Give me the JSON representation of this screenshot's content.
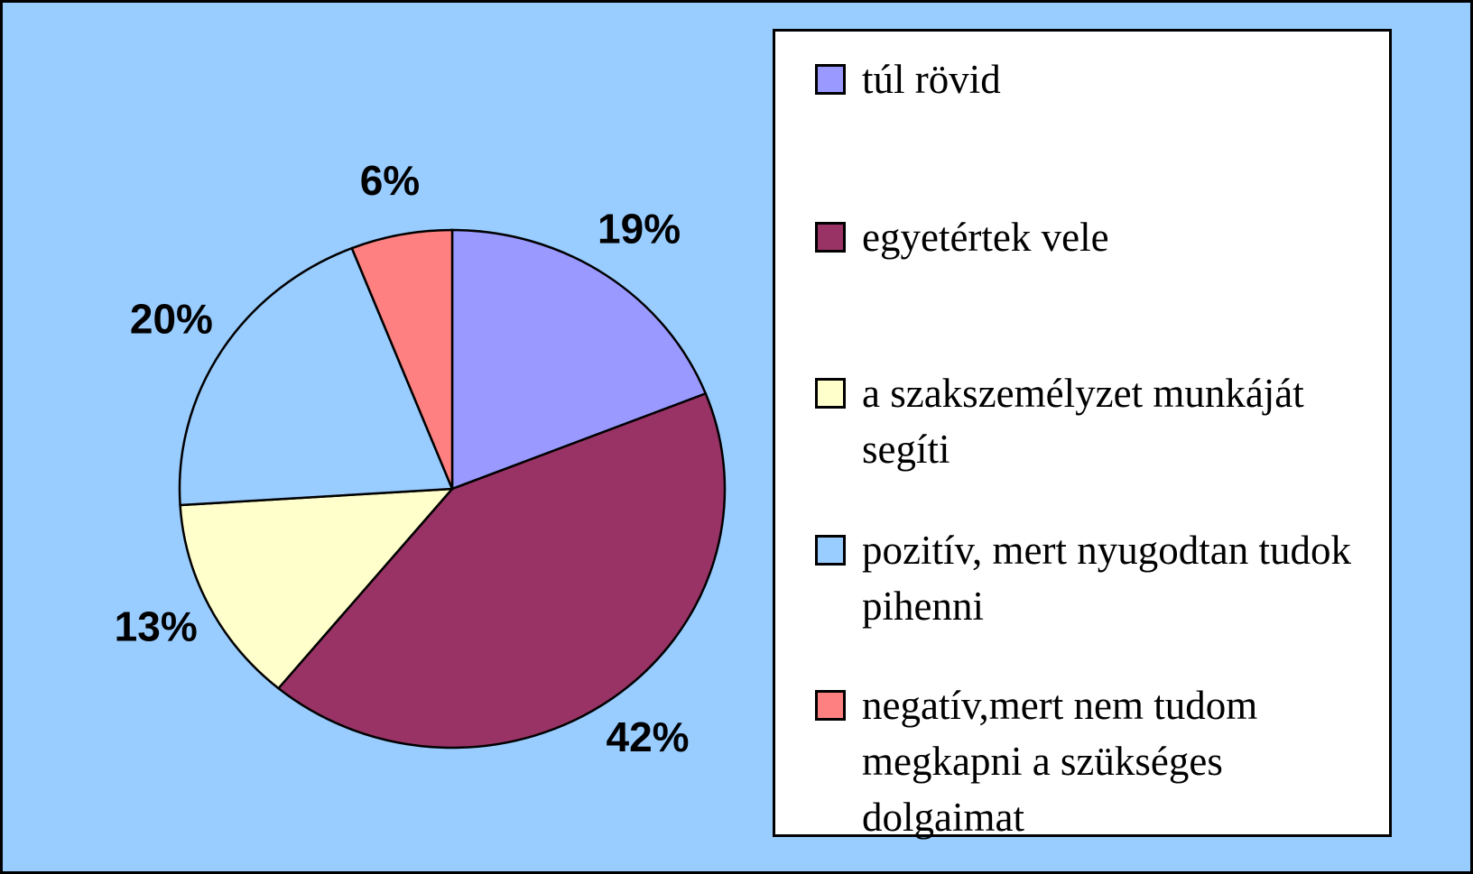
{
  "chart_data": {
    "type": "pie",
    "categories": [
      "túl rövid",
      "egyetértek vele",
      "a szakszemélyzet munkáját segíti",
      "pozitív, mert nyugodtan tudok pihenni",
      "negatív,mert nem tudom megkapni a szükséges dolgaimat"
    ],
    "values": [
      19,
      42,
      13,
      20,
      6
    ],
    "value_labels": [
      "19%",
      "42%",
      "13%",
      "20%",
      "6%"
    ],
    "colors": [
      "#9999ff",
      "#993366",
      "#ffffcc",
      "#99ccff",
      "#ff8080"
    ],
    "legend": "right"
  }
}
